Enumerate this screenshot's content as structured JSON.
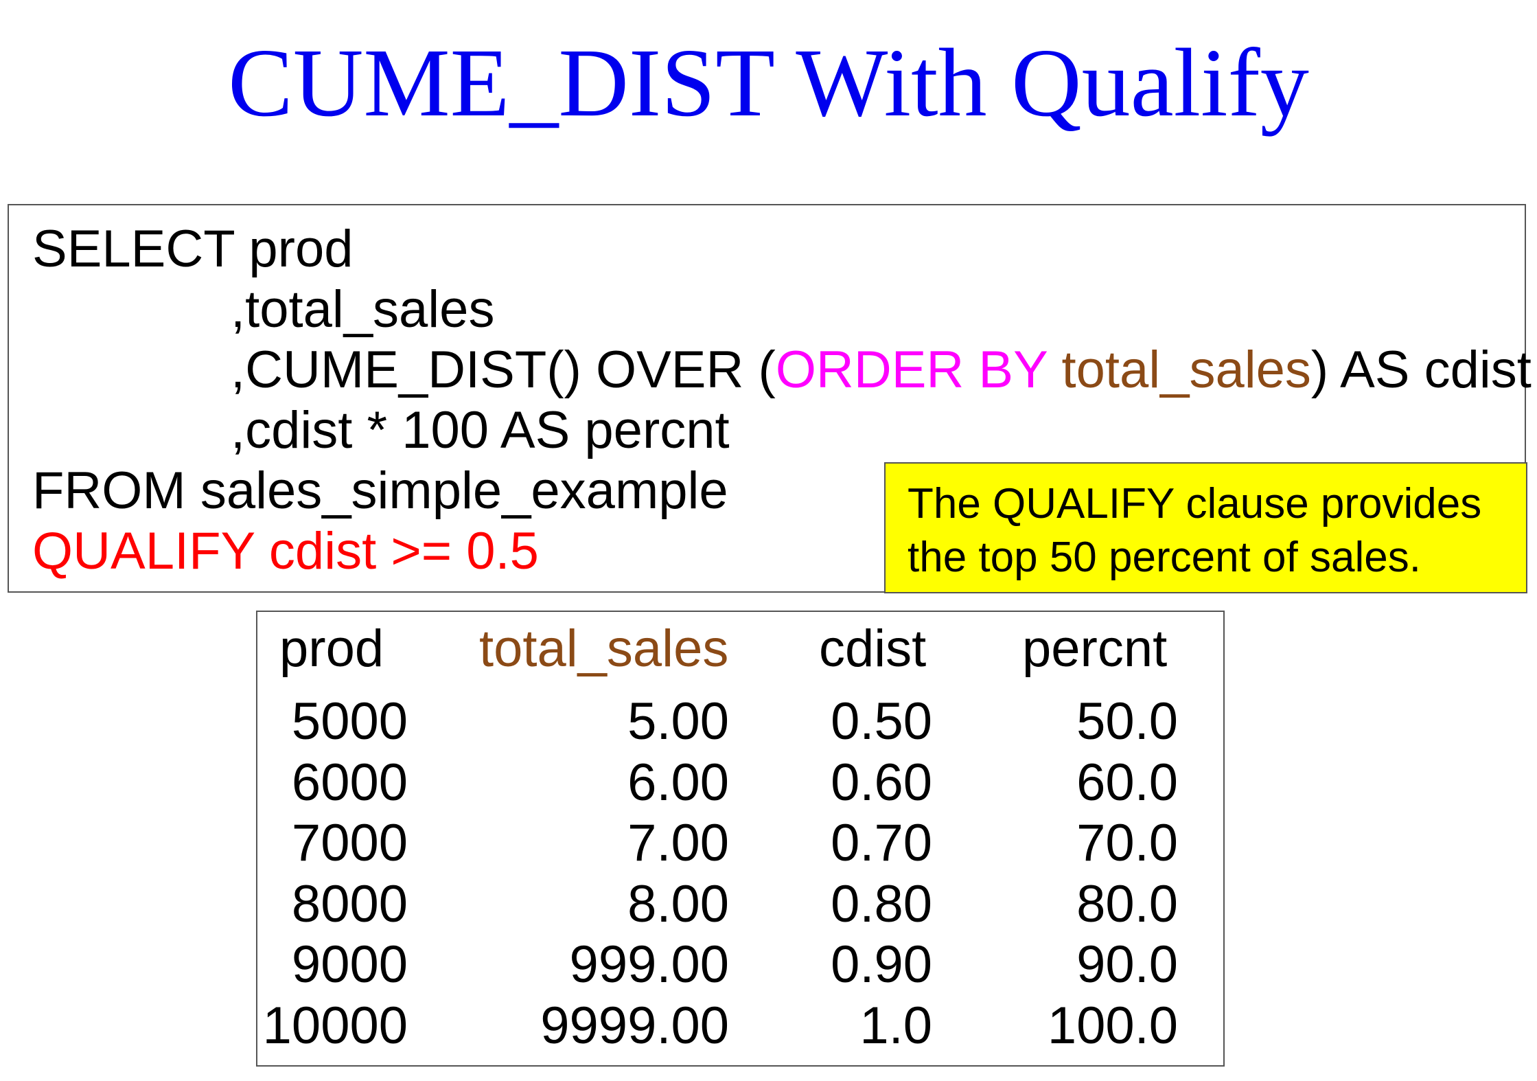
{
  "title": "CUME_DIST With Qualify",
  "colors": {
    "title": "#0000ee",
    "keyword": "#ff00ff",
    "column": "#8b4a16",
    "qualify": "#ff0000",
    "note_bg": "#ffff00"
  },
  "code": {
    "l1": "SELECT prod",
    "l2": ",total_sales",
    "l3a": ",CUME_DIST() OVER (",
    "l3b": "ORDER BY",
    "l3c": " total_sales",
    "l3d": ") AS cdist",
    "l4": ",cdist * 100 AS percnt",
    "l5": "FROM sales_simple_example",
    "l6": "QUALIFY cdist >= 0.5"
  },
  "note": {
    "line1": "The QUALIFY clause provides",
    "line2": "the top 50 percent of sales."
  },
  "result": {
    "headers": [
      "prod",
      "total_sales",
      "cdist",
      "percnt"
    ],
    "rows": [
      [
        "5000",
        "5.00",
        "0.50",
        "50.0"
      ],
      [
        "6000",
        "6.00",
        "0.60",
        "60.0"
      ],
      [
        "7000",
        "7.00",
        "0.70",
        "70.0"
      ],
      [
        "8000",
        "8.00",
        "0.80",
        "80.0"
      ],
      [
        "9000",
        "999.00",
        "0.90",
        "90.0"
      ],
      [
        "10000",
        "9999.00",
        "1.0",
        "100.0"
      ]
    ]
  }
}
